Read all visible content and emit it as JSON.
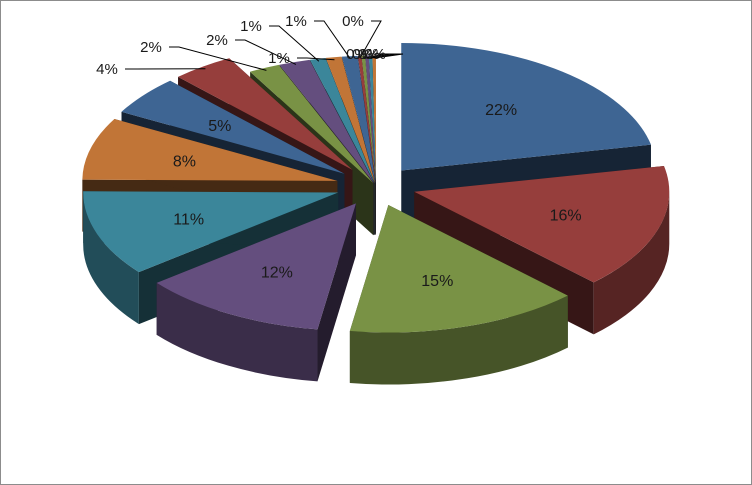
{
  "chart_data": {
    "type": "pie",
    "variant": "3d-exploded",
    "title": "",
    "legend": "none",
    "slices": [
      {
        "label": "22%",
        "value": 22,
        "color": "#4F81BD"
      },
      {
        "label": "16%",
        "value": 16,
        "color": "#C0504D"
      },
      {
        "label": "15%",
        "value": 15,
        "color": "#9BBB59"
      },
      {
        "label": "12%",
        "value": 12,
        "color": "#8064A2"
      },
      {
        "label": "11%",
        "value": 11,
        "color": "#4BACC6"
      },
      {
        "label": "8%",
        "value": 8,
        "color": "#F79646"
      },
      {
        "label": "5%",
        "value": 5,
        "color": "#4F81BD"
      },
      {
        "label": "4%",
        "value": 4,
        "color": "#C0504D"
      },
      {
        "label": "2%",
        "value": 2,
        "color": "#9BBB59"
      },
      {
        "label": "2%",
        "value": 2,
        "color": "#8064A2"
      },
      {
        "label": "1%",
        "value": 1,
        "color": "#4BACC6"
      },
      {
        "label": "1%",
        "value": 1,
        "color": "#F79646"
      },
      {
        "label": "1%",
        "value": 1,
        "color": "#4F81BD"
      },
      {
        "label": "0%",
        "value": 0,
        "color": "#C0504D"
      },
      {
        "label": "0%",
        "value": 0,
        "color": "#9BBB59"
      },
      {
        "label": "0%",
        "value": 0,
        "color": "#8064A2"
      },
      {
        "label": "0%",
        "value": 0,
        "color": "#4BACC6"
      },
      {
        "label": "0%",
        "value": 0,
        "color": "#F79646"
      }
    ]
  }
}
